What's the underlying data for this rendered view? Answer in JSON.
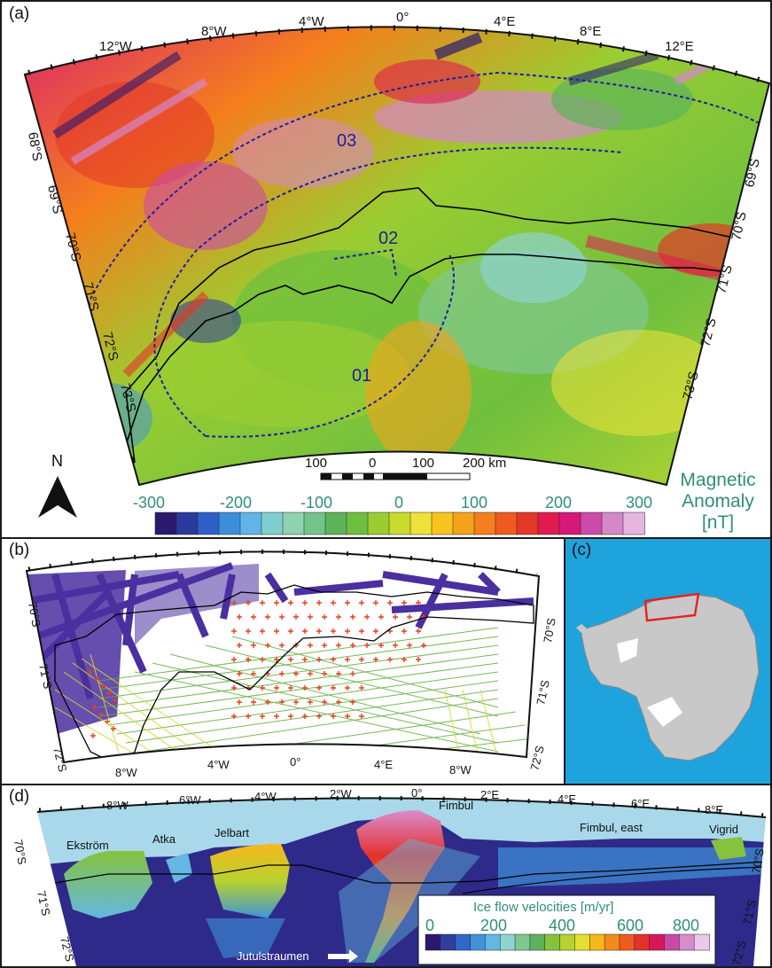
{
  "panels": {
    "a": {
      "label": "(a)"
    },
    "b": {
      "label": "(b)"
    },
    "c": {
      "label": "(c)"
    },
    "d": {
      "label": "(d)"
    }
  },
  "panel_a": {
    "longitudes": [
      "12°W",
      "8°W",
      "4°W",
      "0°",
      "4°E",
      "8°E",
      "12°E"
    ],
    "lat_left": [
      "68°S",
      "69°S",
      "70°S",
      "71°S",
      "72°S",
      "73°S"
    ],
    "lat_right": [
      "69°S",
      "70°S",
      "71°S",
      "72°S",
      "73°S"
    ],
    "regions": [
      "03",
      "02",
      "01"
    ],
    "north_arrow": "N",
    "scalebar": {
      "labels": [
        "100",
        "0",
        "100",
        "200 km"
      ]
    },
    "colorbar": {
      "title_line1": "Magnetic",
      "title_line2": "Anomaly",
      "title_line3": "[nT]",
      "ticks": [
        "-300",
        "-200",
        "-100",
        "0",
        "100",
        "200",
        "300"
      ],
      "colors": [
        "#2a1a6e",
        "#2b3a9c",
        "#2e60c8",
        "#3d8fdc",
        "#5fb4e8",
        "#7fcfd0",
        "#8fd3b0",
        "#74c48a",
        "#5eb35a",
        "#6fbf3e",
        "#9acd32",
        "#c8dc2c",
        "#eee13a",
        "#f7c41e",
        "#f6a21a",
        "#f47f1c",
        "#ee5a20",
        "#e43728",
        "#e11b50",
        "#d81878",
        "#cc4aa8",
        "#d488c8",
        "#e6b6e0"
      ]
    },
    "colors": {
      "region_line": "#1f1f9e",
      "coast": "#000000"
    }
  },
  "panel_b": {
    "longitudes": [
      "8°W",
      "4°W",
      "0°",
      "4°E",
      "8°W"
    ],
    "lat_left": [
      "70°S",
      "71°S",
      "72°S"
    ],
    "lat_right": [
      "70°S",
      "71°S",
      "72°S"
    ],
    "colors": {
      "marine": "#4a2fa0",
      "lines": "#7ab648",
      "ground": "#d8d830",
      "stations": "#e8401e"
    }
  },
  "panel_c": {
    "colors": {
      "ocean": "#1ea3dc",
      "land": "#c8c8c8",
      "ice_shelf": "#ffffff",
      "box": "#e8201e"
    }
  },
  "panel_d": {
    "longitudes": [
      "8°W",
      "6°W",
      "4°W",
      "2°W",
      "0°",
      "2°E",
      "4°E",
      "6°E",
      "8°E"
    ],
    "lat_left": [
      "70°S",
      "71°S",
      "72°S"
    ],
    "lat_right": [
      "70°S",
      "71°S",
      "72°S"
    ],
    "ice_shelves": [
      "Ekström",
      "Atka",
      "Jelbart",
      "Fimbul",
      "Fimbul, east",
      "Vigrid"
    ],
    "glacier": "Jutulstraumen",
    "colorbar": {
      "title": "Ice flow velocities [m/yr]",
      "ticks": [
        "0",
        "200",
        "400",
        "600",
        "800"
      ],
      "colors": [
        "#2a1a6e",
        "#2d3f9f",
        "#2f68c6",
        "#3f93d8",
        "#63b7e2",
        "#8fd3cf",
        "#7fc78e",
        "#5eb35a",
        "#86c23c",
        "#b7d22e",
        "#e8de2f",
        "#f7b81d",
        "#f48a1b",
        "#ee5b20",
        "#e4312a",
        "#d8175a",
        "#c94aa6",
        "#d98ccc",
        "#ecc8ea"
      ],
      "title_color": "#2f8f78"
    },
    "colors": {
      "ocean": "#a8d8ea",
      "slow": "#2e2a8a"
    }
  }
}
